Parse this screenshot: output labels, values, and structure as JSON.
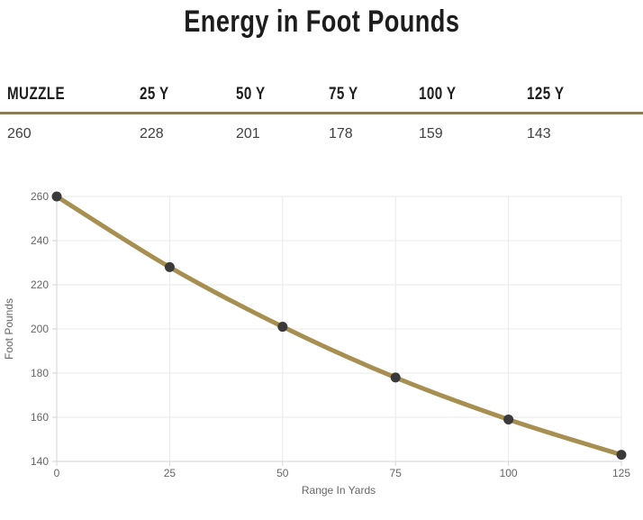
{
  "page": {
    "title": "Energy in Foot Pounds"
  },
  "table": {
    "headers": [
      "MUZZLE",
      "25 Y",
      "50 Y",
      "75 Y",
      "100 Y",
      "125 Y"
    ],
    "values": [
      "260",
      "228",
      "201",
      "178",
      "159",
      "143"
    ]
  },
  "chart_data": {
    "type": "line",
    "x": [
      0,
      25,
      50,
      75,
      100,
      125
    ],
    "values": [
      260,
      228,
      201,
      178,
      159,
      143
    ],
    "series": [
      {
        "name": "Energy",
        "values": [
          260,
          228,
          201,
          178,
          159,
          143
        ]
      }
    ],
    "title": "Energy in Foot Pounds",
    "xlabel": "Range In Yards",
    "ylabel": "Foot Pounds",
    "xlim": [
      0,
      125
    ],
    "ylim": [
      140,
      260
    ],
    "x_ticks": [
      0,
      25,
      50,
      75,
      100,
      125
    ],
    "y_ticks": [
      140,
      160,
      180,
      200,
      220,
      240,
      260
    ],
    "grid": true,
    "legend": "none",
    "line_color": "#a68f50",
    "point_color": "#3a3a3a"
  },
  "colors": {
    "accent_divider": "#8c7b57",
    "title_text": "#1d1d1d",
    "value_text": "#404040",
    "tick_text": "#666666",
    "grid": "#e9e9e9",
    "axis": "#d6d6d6",
    "background": "#ffffff"
  }
}
